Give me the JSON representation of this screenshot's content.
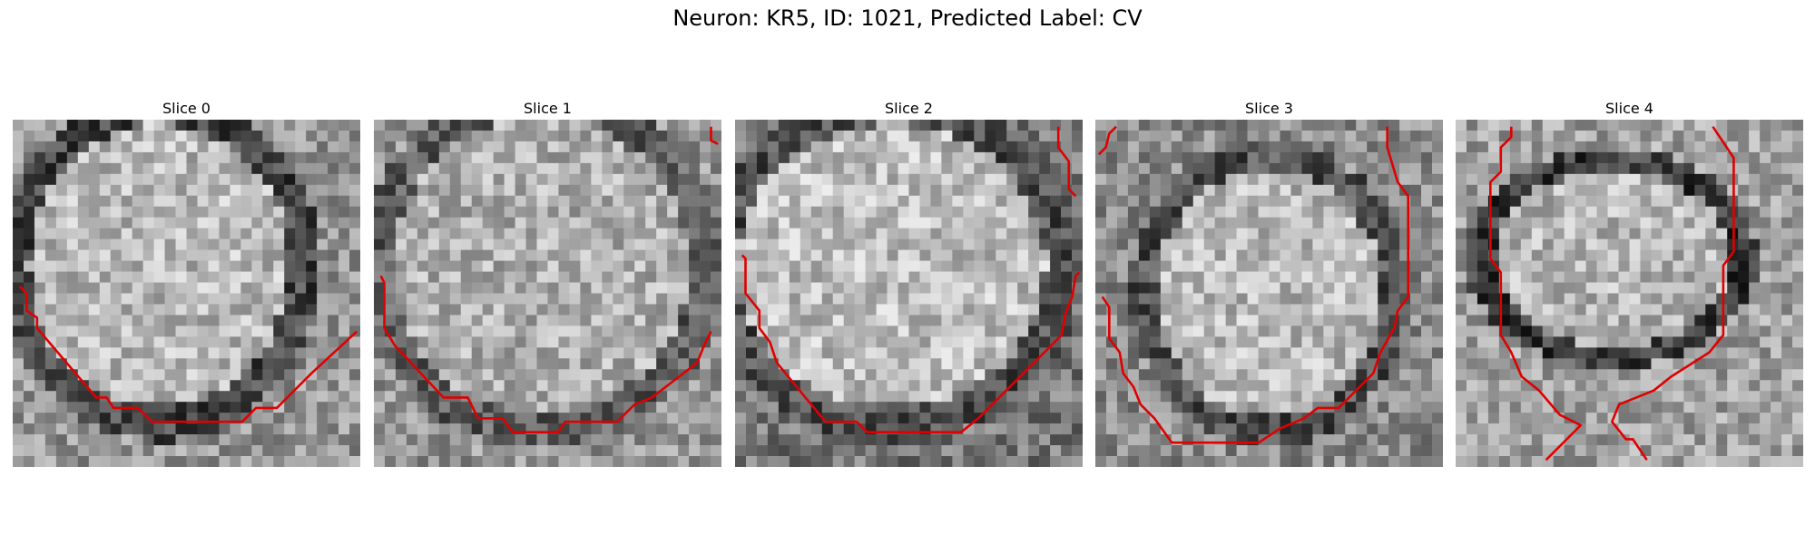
{
  "figure": {
    "title": "Neuron: KR5, ID: 1021, Predicted Label: CV"
  },
  "panels": [
    {
      "title": "Slice 0",
      "contours": [
        [
          [
            0.02,
            0.48
          ],
          [
            0.04,
            0.5
          ],
          [
            0.04,
            0.55
          ],
          [
            0.07,
            0.57
          ],
          [
            0.07,
            0.6
          ],
          [
            0.24,
            0.8
          ],
          [
            0.27,
            0.8
          ],
          [
            0.29,
            0.83
          ],
          [
            0.36,
            0.83
          ],
          [
            0.4,
            0.87
          ],
          [
            0.66,
            0.87
          ],
          [
            0.7,
            0.83
          ],
          [
            0.76,
            0.83
          ],
          [
            0.86,
            0.73
          ],
          [
            0.99,
            0.61
          ]
        ]
      ]
    },
    {
      "title": "Slice 1",
      "contours": [
        [
          [
            0.02,
            0.45
          ],
          [
            0.03,
            0.47
          ],
          [
            0.03,
            0.6
          ],
          [
            0.06,
            0.65
          ],
          [
            0.2,
            0.8
          ],
          [
            0.27,
            0.8
          ],
          [
            0.3,
            0.86
          ],
          [
            0.37,
            0.86
          ],
          [
            0.4,
            0.9
          ],
          [
            0.53,
            0.9
          ],
          [
            0.55,
            0.87
          ],
          [
            0.7,
            0.87
          ],
          [
            0.75,
            0.82
          ],
          [
            0.8,
            0.8
          ],
          [
            0.93,
            0.7
          ],
          [
            0.95,
            0.65
          ],
          [
            0.97,
            0.61
          ]
        ],
        [
          [
            0.97,
            0.02
          ],
          [
            0.97,
            0.06
          ],
          [
            0.99,
            0.07
          ]
        ]
      ]
    },
    {
      "title": "Slice 2",
      "contours": [
        [
          [
            0.02,
            0.39
          ],
          [
            0.03,
            0.4
          ],
          [
            0.03,
            0.5
          ],
          [
            0.07,
            0.55
          ],
          [
            0.07,
            0.6
          ],
          [
            0.1,
            0.64
          ],
          [
            0.12,
            0.7
          ],
          [
            0.26,
            0.87
          ],
          [
            0.35,
            0.87
          ],
          [
            0.38,
            0.9
          ],
          [
            0.65,
            0.9
          ],
          [
            0.7,
            0.86
          ],
          [
            0.9,
            0.66
          ],
          [
            0.94,
            0.62
          ],
          [
            0.95,
            0.56
          ],
          [
            0.97,
            0.51
          ],
          [
            0.98,
            0.45
          ],
          [
            0.99,
            0.44
          ]
        ],
        [
          [
            0.93,
            0.02
          ],
          [
            0.93,
            0.08
          ],
          [
            0.96,
            0.12
          ],
          [
            0.96,
            0.2
          ],
          [
            0.98,
            0.22
          ]
        ]
      ]
    },
    {
      "title": "Slice 3",
      "contours": [
        [
          [
            0.02,
            0.51
          ],
          [
            0.04,
            0.54
          ],
          [
            0.04,
            0.63
          ],
          [
            0.07,
            0.67
          ],
          [
            0.08,
            0.73
          ],
          [
            0.11,
            0.77
          ],
          [
            0.13,
            0.82
          ],
          [
            0.17,
            0.86
          ],
          [
            0.22,
            0.93
          ],
          [
            0.47,
            0.93
          ],
          [
            0.53,
            0.89
          ],
          [
            0.6,
            0.86
          ],
          [
            0.64,
            0.83
          ],
          [
            0.7,
            0.83
          ],
          [
            0.8,
            0.73
          ],
          [
            0.82,
            0.67
          ],
          [
            0.86,
            0.6
          ],
          [
            0.87,
            0.55
          ],
          [
            0.9,
            0.51
          ],
          [
            0.9,
            0.22
          ],
          [
            0.87,
            0.18
          ],
          [
            0.84,
            0.08
          ],
          [
            0.84,
            0.02
          ]
        ],
        [
          [
            0.01,
            0.1
          ],
          [
            0.03,
            0.08
          ],
          [
            0.04,
            0.04
          ],
          [
            0.06,
            0.02
          ]
        ]
      ]
    },
    {
      "title": "Slice 4",
      "contours": [
        [
          [
            0.16,
            0.02
          ],
          [
            0.16,
            0.05
          ],
          [
            0.13,
            0.08
          ],
          [
            0.13,
            0.15
          ],
          [
            0.1,
            0.18
          ],
          [
            0.1,
            0.4
          ],
          [
            0.13,
            0.44
          ],
          [
            0.13,
            0.62
          ],
          [
            0.16,
            0.67
          ],
          [
            0.19,
            0.74
          ],
          [
            0.24,
            0.78
          ],
          [
            0.3,
            0.85
          ],
          [
            0.36,
            0.88
          ],
          [
            0.26,
            0.98
          ]
        ],
        [
          [
            0.74,
            0.02
          ],
          [
            0.8,
            0.11
          ],
          [
            0.8,
            0.38
          ],
          [
            0.77,
            0.42
          ],
          [
            0.77,
            0.62
          ],
          [
            0.73,
            0.67
          ],
          [
            0.62,
            0.74
          ],
          [
            0.57,
            0.78
          ],
          [
            0.52,
            0.8
          ],
          [
            0.47,
            0.82
          ],
          [
            0.45,
            0.87
          ],
          [
            0.49,
            0.92
          ],
          [
            0.51,
            0.92
          ],
          [
            0.55,
            0.98
          ]
        ]
      ]
    }
  ]
}
